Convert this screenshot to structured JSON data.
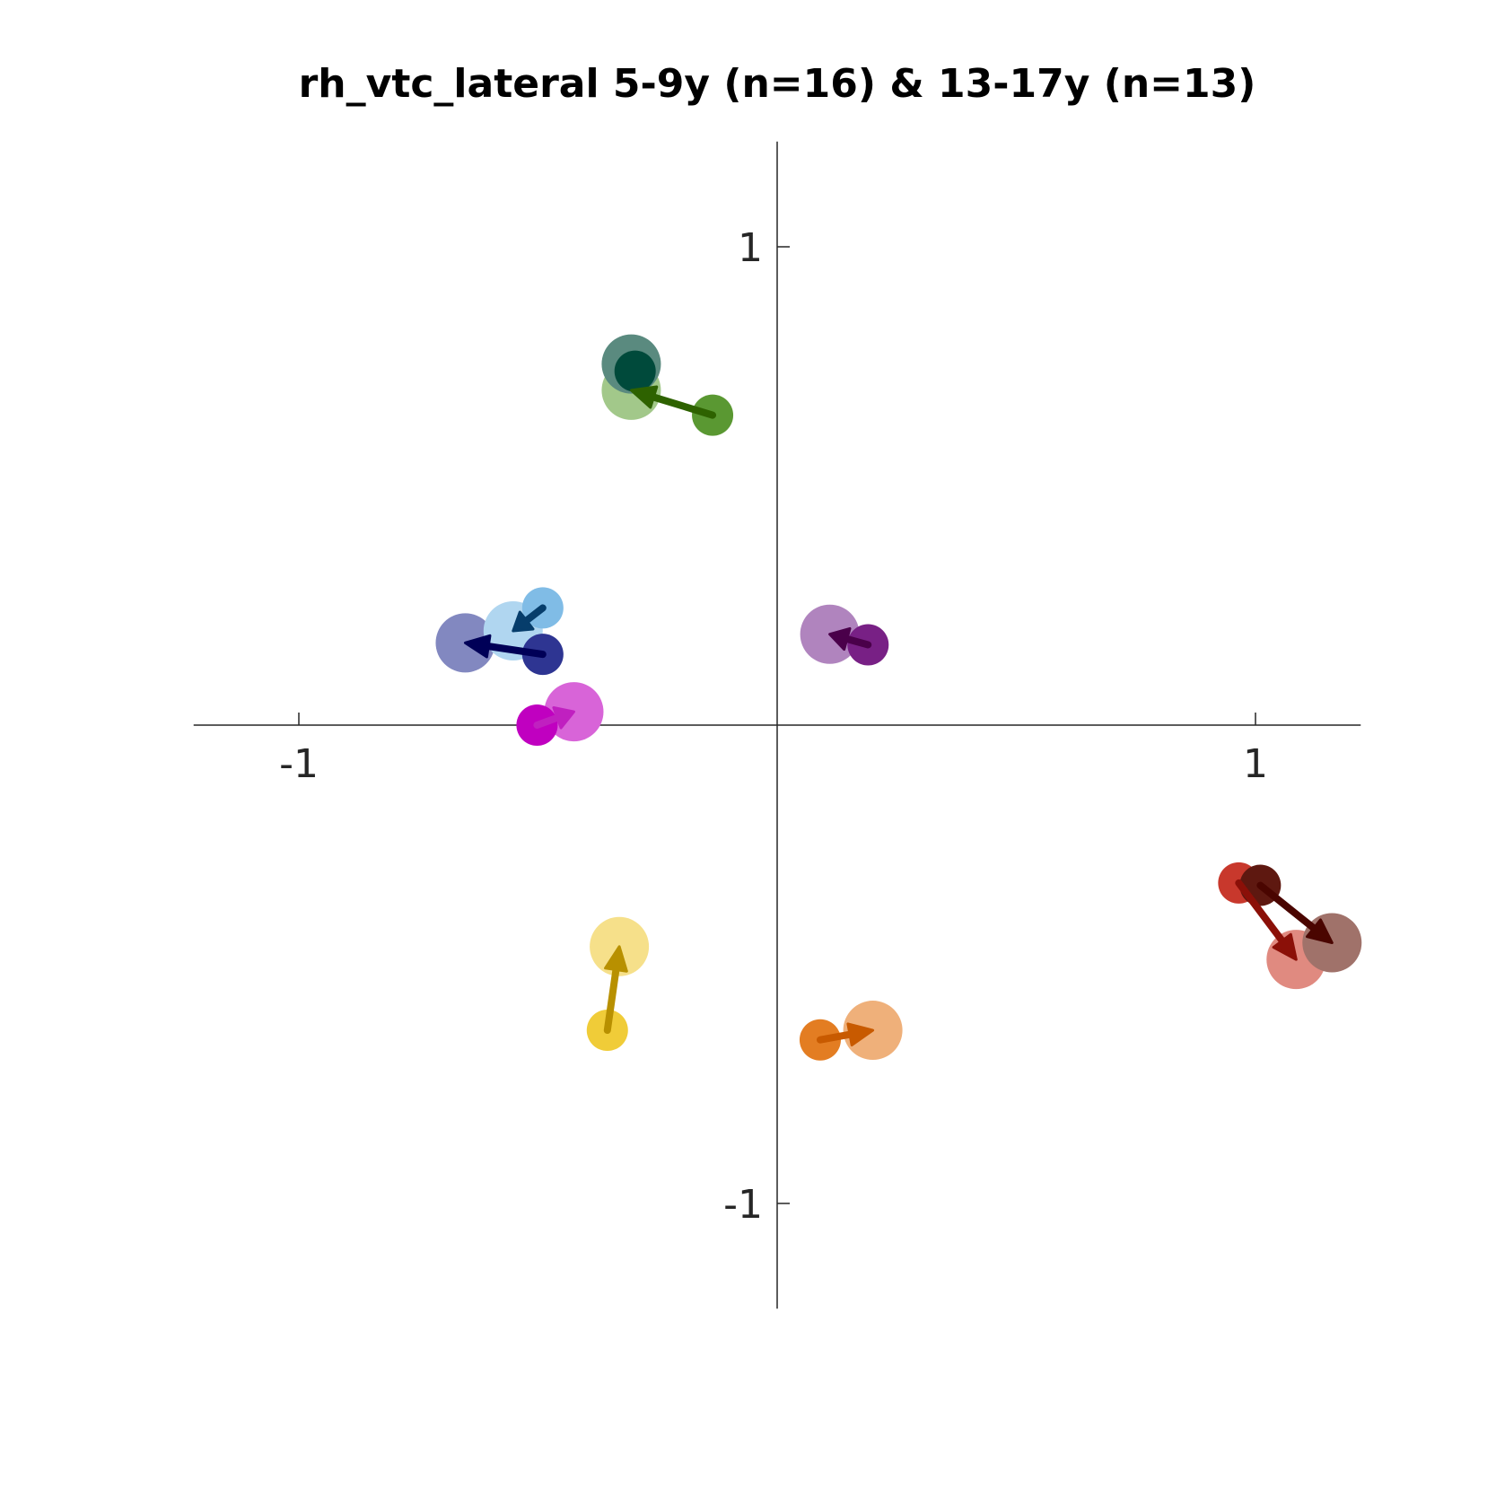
{
  "chart_data": {
    "type": "scatter",
    "title": "rh_vtc_lateral 5-9y (n=16) & 13-17y (n=13)",
    "xlabel": "",
    "ylabel": "",
    "xlim": [
      -1.22,
      1.22
    ],
    "ylim": [
      -1.22,
      1.22
    ],
    "xticks": [
      -1,
      1
    ],
    "xtick_labels": [
      "-1",
      "1"
    ],
    "yticks": [
      -1,
      1
    ],
    "ytick_labels": [
      "-1",
      "1"
    ],
    "grid": false,
    "legend": "none",
    "axes_through_origin": true,
    "series": [
      {
        "group_color": "red",
        "colors": {
          "start": "#c8382c",
          "arrow": "#8b1008",
          "end": "#e08a80"
        },
        "start": {
          "x": 0.965,
          "y": -0.33
        },
        "end": {
          "x": 1.085,
          "y": -0.49
        }
      },
      {
        "group_color": "dark-red",
        "colors": {
          "start": "#5e1810",
          "arrow": "#4a0500",
          "end": "#a0726a"
        },
        "start": {
          "x": 1.01,
          "y": -0.335
        },
        "end": {
          "x": 1.16,
          "y": -0.455
        }
      },
      {
        "group_color": "orange",
        "colors": {
          "start": "#e37d22",
          "arrow": "#c85a00",
          "end": "#efb07a"
        },
        "start": {
          "x": 0.09,
          "y": -0.658
        },
        "end": {
          "x": 0.2,
          "y": -0.638
        }
      },
      {
        "group_color": "yellow",
        "colors": {
          "start": "#f0cc38",
          "arrow": "#b89000",
          "end": "#f6e08a"
        },
        "start": {
          "x": -0.355,
          "y": -0.638
        },
        "end": {
          "x": -0.33,
          "y": -0.463
        }
      },
      {
        "group_color": "magenta",
        "colors": {
          "start": "#c000c0",
          "arrow": "#c020c0",
          "end": "#d864d8"
        },
        "start": {
          "x": -0.502,
          "y": 0.0
        },
        "end": {
          "x": -0.425,
          "y": 0.028
        }
      },
      {
        "group_color": "navy",
        "colors": {
          "start": "#2e3592",
          "arrow": "#000057",
          "end": "#8288c0"
        },
        "start": {
          "x": -0.49,
          "y": 0.148
        },
        "end": {
          "x": -0.652,
          "y": 0.172
        }
      },
      {
        "group_color": "light-blue",
        "colors": {
          "start": "#80bce6",
          "arrow": "#063d6b",
          "end": "#b0d6f0"
        },
        "start": {
          "x": -0.49,
          "y": 0.245
        },
        "end": {
          "x": -0.552,
          "y": 0.197
        }
      },
      {
        "group_color": "purple",
        "colors": {
          "start": "#782085",
          "arrow": "#4a004a",
          "end": "#b084be"
        },
        "start": {
          "x": 0.19,
          "y": 0.168
        },
        "end": {
          "x": 0.11,
          "y": 0.19
        }
      },
      {
        "group_color": "green",
        "colors": {
          "start": "#5a9832",
          "arrow": "#2e6200",
          "end": "#a2c88a"
        },
        "start": {
          "x": -0.135,
          "y": 0.648
        },
        "end": {
          "x": -0.305,
          "y": 0.7
        }
      },
      {
        "group_color": "teal",
        "colors": {
          "start": "#004a3b",
          "arrow": "#004a3b",
          "end": "#5a8a7f"
        },
        "start": {
          "x": -0.297,
          "y": 0.74
        },
        "end": {
          "x": -0.305,
          "y": 0.755
        }
      }
    ]
  }
}
